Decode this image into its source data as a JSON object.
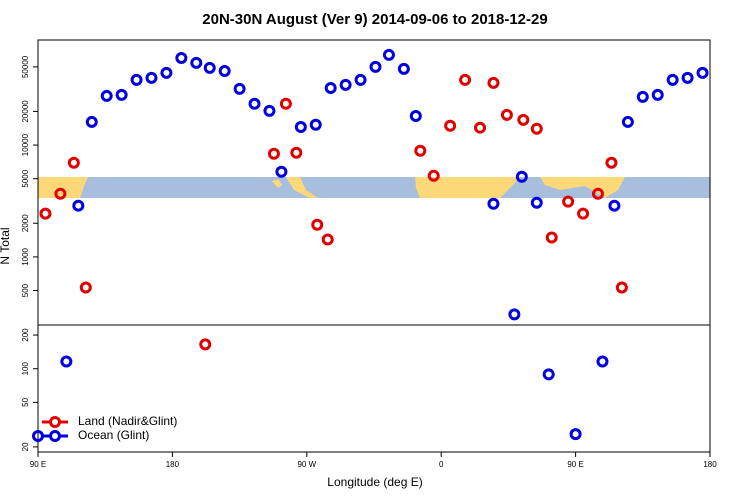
{
  "chart_data": {
    "type": "scatter",
    "title": "20N-30N August (Ver 9)   2014-09-06 to 2018-12-29",
    "x_label": "Longitude (deg E)",
    "y_label": "N Total",
    "log_y": true,
    "legend": "bottom-left",
    "xlim": [
      90,
      540
    ],
    "ylim": [
      18,
      87000
    ],
    "xticks": [
      {
        "value": 90,
        "label": "90 E"
      },
      180,
      {
        "value": 270,
        "label": "90 W"
      },
      {
        "value": 360,
        "label": "0"
      },
      {
        "value": 450,
        "label": "90 E"
      },
      {
        "value": 540,
        "label": "180"
      }
    ],
    "yticks": [
      20,
      50,
      100,
      200,
      500,
      1000,
      2000,
      5000,
      10000,
      20000,
      50000
    ],
    "series": [
      {
        "name": "Land (Nadir&Glint)",
        "color": "#e00000",
        "x": [
          95,
          105,
          114,
          122,
          202,
          248,
          256,
          263,
          277,
          284,
          346,
          355,
          366,
          376,
          386,
          395,
          404,
          415,
          424,
          434,
          445,
          455,
          465,
          474,
          481
        ],
        "values": [
          2440,
          3670,
          6950,
          532,
          165,
          8360,
          23400,
          8530,
          1940,
          1430,
          8890,
          5320,
          14900,
          38300,
          14300,
          36000,
          18600,
          16800,
          14000,
          1490,
          3120,
          2440,
          3670,
          6950,
          532
        ]
      },
      {
        "name": "Ocean (Glint)",
        "color": "#0000e0",
        "x": [
          90,
          109,
          117,
          126,
          136,
          146,
          156,
          166,
          176,
          186,
          196,
          205,
          215,
          225,
          235,
          245,
          253,
          266,
          276,
          286,
          296,
          306,
          316,
          325,
          335,
          343,
          395,
          409,
          414,
          424,
          432,
          450,
          468,
          476,
          485,
          495,
          505,
          515,
          525,
          535
        ],
        "values": [
          25,
          116,
          2870,
          16100,
          27500,
          28100,
          38300,
          39900,
          44200,
          60100,
          54300,
          49000,
          46000,
          31800,
          23400,
          20200,
          5770,
          14500,
          15200,
          32400,
          34500,
          38300,
          50000,
          64000,
          48000,
          18200,
          2990,
          306,
          5210,
          3050,
          89,
          26,
          116,
          2870,
          16100,
          27000,
          28100,
          38300,
          39900,
          44200
        ]
      }
    ]
  }
}
